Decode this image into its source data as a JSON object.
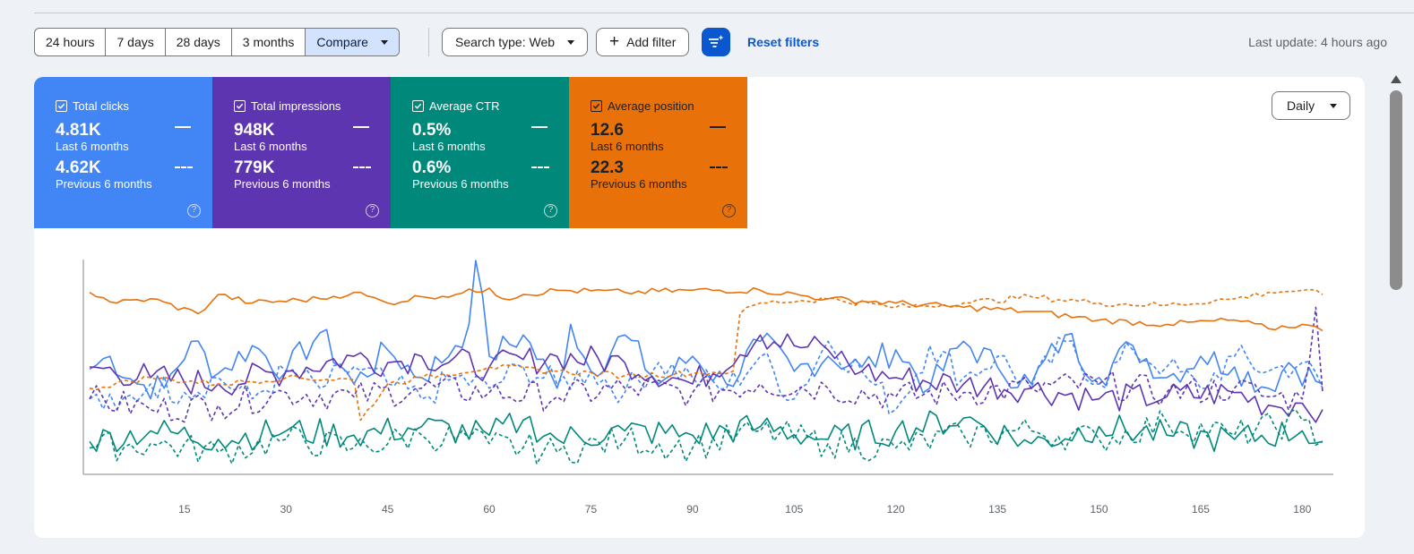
{
  "toolbar": {
    "ranges": [
      "24 hours",
      "7 days",
      "28 days",
      "3 months"
    ],
    "compare_label": "Compare",
    "search_type_label": "Search type: Web",
    "add_filter_label": "Add filter",
    "reset_label": "Reset filters",
    "last_update": "Last update: 4 hours ago"
  },
  "metrics": [
    {
      "label": "Total clicks",
      "current": "4.81K",
      "current_period": "Last 6 months",
      "previous": "4.62K",
      "previous_period": "Previous 6 months",
      "color": "#4285f4"
    },
    {
      "label": "Total impressions",
      "current": "948K",
      "current_period": "Last 6 months",
      "previous": "779K",
      "previous_period": "Previous 6 months",
      "color": "#5e35b1"
    },
    {
      "label": "Average CTR",
      "current": "0.5%",
      "current_period": "Last 6 months",
      "previous": "0.6%",
      "previous_period": "Previous 6 months",
      "color": "#00897b"
    },
    {
      "label": "Average position",
      "current": "12.6",
      "current_period": "Last 6 months",
      "previous": "22.3",
      "previous_period": "Previous 6 months",
      "color": "#e8710a"
    }
  ],
  "granularity_label": "Daily",
  "chart_data": {
    "type": "line",
    "x_ticks": [
      15,
      30,
      45,
      60,
      75,
      90,
      105,
      120,
      135,
      150,
      165,
      180
    ],
    "x_range": [
      1,
      183
    ],
    "series": [
      {
        "name": "Total clicks",
        "style": "solid",
        "color": "#4285f4",
        "x": [
          1,
          4,
          8,
          12,
          16,
          20,
          25,
          30,
          35,
          40,
          45,
          50,
          55,
          57,
          58,
          60,
          65,
          70,
          72,
          75,
          80,
          85,
          90,
          95,
          100,
          105,
          110,
          115,
          120,
          125,
          130,
          135,
          140,
          145,
          150,
          155,
          160,
          165,
          170,
          175,
          178,
          183
        ],
        "values": [
          0.49,
          0.55,
          0.42,
          0.4,
          0.62,
          0.47,
          0.6,
          0.48,
          0.66,
          0.42,
          0.58,
          0.45,
          0.6,
          0.7,
          1.0,
          0.55,
          0.65,
          0.4,
          0.7,
          0.48,
          0.65,
          0.42,
          0.55,
          0.42,
          0.62,
          0.48,
          0.55,
          0.5,
          0.58,
          0.4,
          0.62,
          0.5,
          0.42,
          0.65,
          0.45,
          0.6,
          0.45,
          0.55,
          0.5,
          0.4,
          0.52,
          0.42
        ]
      },
      {
        "name": "Total clicks",
        "style": "dashed",
        "color": "#4285f4",
        "x": [
          1,
          5,
          10,
          15,
          20,
          25,
          30,
          35,
          40,
          45,
          50,
          55,
          60,
          65,
          70,
          75,
          80,
          85,
          90,
          95,
          100,
          105,
          110,
          115,
          120,
          125,
          130,
          135,
          140,
          145,
          150,
          155,
          160,
          165,
          170,
          175,
          180,
          183
        ],
        "values": [
          0.35,
          0.3,
          0.42,
          0.38,
          0.45,
          0.35,
          0.48,
          0.4,
          0.5,
          0.42,
          0.35,
          0.45,
          0.4,
          0.5,
          0.42,
          0.48,
          0.38,
          0.52,
          0.45,
          0.4,
          0.55,
          0.35,
          0.62,
          0.48,
          0.3,
          0.6,
          0.45,
          0.55,
          0.4,
          0.62,
          0.42,
          0.58,
          0.5,
          0.4,
          0.55,
          0.48,
          0.52,
          0.4
        ]
      },
      {
        "name": "Total impressions",
        "style": "solid",
        "color": "#5e35b1",
        "x": [
          1,
          10,
          20,
          30,
          40,
          45,
          50,
          60,
          70,
          80,
          90,
          100,
          105,
          110,
          115,
          120,
          130,
          140,
          150,
          160,
          170,
          175,
          180,
          183
        ],
        "values": [
          0.5,
          0.45,
          0.42,
          0.48,
          0.55,
          0.52,
          0.55,
          0.5,
          0.55,
          0.52,
          0.42,
          0.65,
          0.6,
          0.58,
          0.48,
          0.45,
          0.42,
          0.4,
          0.35,
          0.36,
          0.38,
          0.32,
          0.33,
          0.3
        ]
      },
      {
        "name": "Total impressions",
        "style": "dashed",
        "color": "#5e35b1",
        "x": [
          1,
          10,
          20,
          30,
          40,
          50,
          60,
          70,
          80,
          90,
          100,
          110,
          120,
          130,
          140,
          150,
          160,
          170,
          175,
          180,
          182,
          183
        ],
        "values": [
          0.35,
          0.3,
          0.32,
          0.38,
          0.36,
          0.4,
          0.38,
          0.36,
          0.4,
          0.38,
          0.42,
          0.4,
          0.36,
          0.38,
          0.4,
          0.42,
          0.38,
          0.4,
          0.36,
          0.35,
          0.78,
          0.38
        ]
      },
      {
        "name": "Average CTR",
        "style": "solid",
        "color": "#00897b",
        "x": [
          1,
          10,
          20,
          30,
          40,
          50,
          60,
          65,
          70,
          80,
          90,
          100,
          110,
          120,
          130,
          140,
          150,
          160,
          170,
          180,
          183
        ],
        "values": [
          0.15,
          0.2,
          0.16,
          0.2,
          0.18,
          0.22,
          0.18,
          0.25,
          0.16,
          0.2,
          0.18,
          0.22,
          0.16,
          0.2,
          0.26,
          0.14,
          0.22,
          0.18,
          0.16,
          0.2,
          0.15
        ]
      },
      {
        "name": "Average CTR",
        "style": "dashed",
        "color": "#00897b",
        "x": [
          1,
          10,
          20,
          30,
          40,
          50,
          60,
          70,
          80,
          90,
          100,
          110,
          120,
          130,
          140,
          150,
          160,
          170,
          180,
          183
        ],
        "values": [
          0.12,
          0.14,
          0.1,
          0.16,
          0.12,
          0.18,
          0.14,
          0.1,
          0.16,
          0.12,
          0.2,
          0.14,
          0.12,
          0.18,
          0.2,
          0.16,
          0.24,
          0.18,
          0.25,
          0.15
        ]
      },
      {
        "name": "Average position",
        "style": "solid",
        "color": "#e8710a",
        "x": [
          1,
          5,
          10,
          17,
          20,
          25,
          35,
          40,
          45,
          50,
          55,
          60,
          62,
          65,
          70,
          80,
          90,
          100,
          110,
          120,
          130,
          140,
          150,
          160,
          170,
          175,
          180,
          183
        ],
        "values": [
          0.85,
          0.8,
          0.82,
          0.75,
          0.84,
          0.8,
          0.82,
          0.85,
          0.8,
          0.83,
          0.84,
          0.87,
          0.82,
          0.84,
          0.86,
          0.85,
          0.86,
          0.86,
          0.82,
          0.8,
          0.78,
          0.76,
          0.72,
          0.7,
          0.72,
          0.68,
          0.7,
          0.67
        ]
      },
      {
        "name": "Average position",
        "style": "dashed",
        "color": "#e8710a",
        "x": [
          1,
          10,
          20,
          30,
          40,
          41,
          45,
          50,
          60,
          70,
          80,
          90,
          96,
          97,
          100,
          110,
          120,
          130,
          140,
          150,
          160,
          170,
          175,
          180,
          183
        ],
        "values": [
          0.4,
          0.45,
          0.42,
          0.45,
          0.44,
          0.25,
          0.42,
          0.45,
          0.5,
          0.48,
          0.46,
          0.47,
          0.48,
          0.75,
          0.8,
          0.82,
          0.78,
          0.8,
          0.83,
          0.8,
          0.79,
          0.82,
          0.85,
          0.86,
          0.84
        ]
      }
    ]
  }
}
